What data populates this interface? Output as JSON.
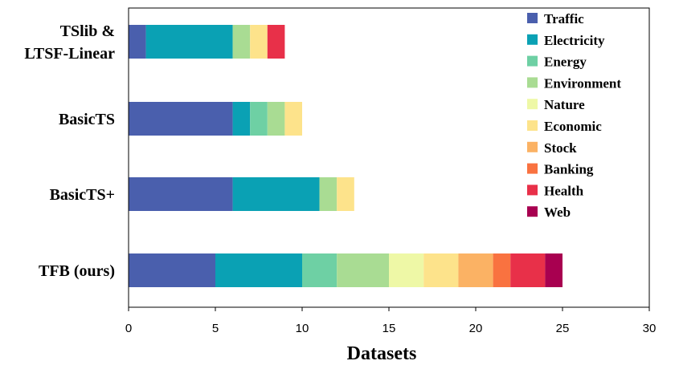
{
  "chart_data": {
    "type": "bar",
    "orientation": "horizontal",
    "stacked": true,
    "xlabel": "Datasets",
    "xlim": [
      0,
      30
    ],
    "xticks": [
      0,
      5,
      10,
      15,
      20,
      25,
      30
    ],
    "grid": false,
    "legend_position": "top-right",
    "categories": [
      {
        "lines": [
          "TSlib &",
          "LTSF-Linear"
        ]
      },
      {
        "lines": [
          "BasicTS"
        ]
      },
      {
        "lines": [
          "BasicTS+"
        ]
      },
      {
        "lines": [
          "TFB (ours)"
        ]
      }
    ],
    "series": [
      {
        "name": "Traffic",
        "color": "#4a5fad",
        "values": [
          1,
          6,
          6,
          5
        ]
      },
      {
        "name": "Electricity",
        "color": "#0aa1b4",
        "values": [
          5,
          1,
          5,
          5
        ]
      },
      {
        "name": "Energy",
        "color": "#6ed0a4",
        "values": [
          0,
          1,
          0,
          2
        ]
      },
      {
        "name": "Environment",
        "color": "#a9dc93",
        "values": [
          1,
          1,
          1,
          3
        ]
      },
      {
        "name": "Nature",
        "color": "#eef8a6",
        "values": [
          0,
          0,
          0,
          2
        ]
      },
      {
        "name": "Economic",
        "color": "#fde38b",
        "values": [
          1,
          1,
          1,
          2
        ]
      },
      {
        "name": "Stock",
        "color": "#fbb264",
        "values": [
          0,
          0,
          0,
          2
        ]
      },
      {
        "name": "Banking",
        "color": "#f97240",
        "values": [
          0,
          0,
          0,
          1
        ]
      },
      {
        "name": "Health",
        "color": "#e83049",
        "values": [
          1,
          0,
          0,
          2
        ]
      },
      {
        "name": "Web",
        "color": "#a80050",
        "values": [
          0,
          0,
          0,
          1
        ]
      }
    ]
  }
}
